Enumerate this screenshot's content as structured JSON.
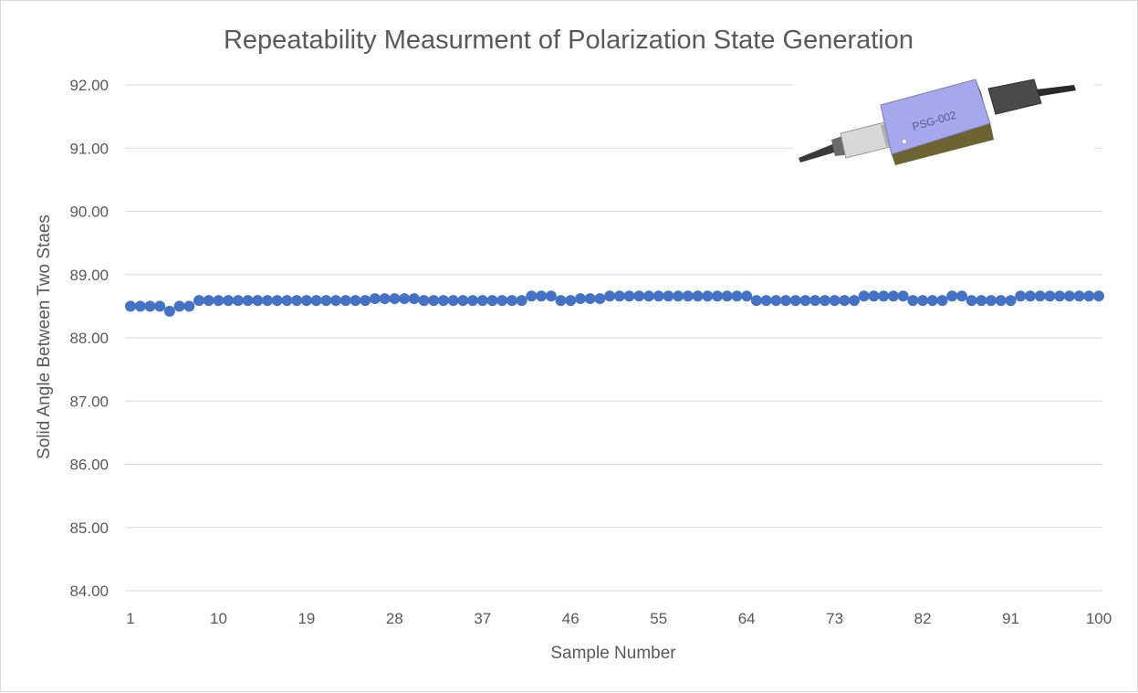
{
  "chart_data": {
    "type": "scatter",
    "title": "Repeatability Measurment of Polarization State Generation",
    "xlabel": "Sample Number",
    "ylabel": "Solid Angle Between Two Staes",
    "xlim": [
      1,
      100
    ],
    "ylim": [
      84.0,
      92.0
    ],
    "y_ticks": [
      "84.00",
      "85.00",
      "86.00",
      "87.00",
      "88.00",
      "89.00",
      "90.00",
      "91.00",
      "92.00"
    ],
    "x_ticks": [
      "1",
      "10",
      "19",
      "28",
      "37",
      "46",
      "55",
      "64",
      "73",
      "82",
      "91",
      "100"
    ],
    "grid": "horizontal",
    "legend": "none",
    "marker_color": "#4472C4",
    "x": [
      1,
      2,
      3,
      4,
      5,
      6,
      7,
      8,
      9,
      10,
      11,
      12,
      13,
      14,
      15,
      16,
      17,
      18,
      19,
      20,
      21,
      22,
      23,
      24,
      25,
      26,
      27,
      28,
      29,
      30,
      31,
      32,
      33,
      34,
      35,
      36,
      37,
      38,
      39,
      40,
      41,
      42,
      43,
      44,
      45,
      46,
      47,
      48,
      49,
      50,
      51,
      52,
      53,
      54,
      55,
      56,
      57,
      58,
      59,
      60,
      61,
      62,
      63,
      64,
      65,
      66,
      67,
      68,
      69,
      70,
      71,
      72,
      73,
      74,
      75,
      76,
      77,
      78,
      79,
      80,
      81,
      82,
      83,
      84,
      85,
      86,
      87,
      88,
      89,
      90,
      91,
      92,
      93,
      94,
      95,
      96,
      97,
      98,
      99,
      100
    ],
    "y": [
      88.5,
      88.5,
      88.5,
      88.5,
      88.42,
      88.5,
      88.5,
      88.59,
      88.59,
      88.59,
      88.59,
      88.59,
      88.59,
      88.59,
      88.59,
      88.59,
      88.59,
      88.59,
      88.59,
      88.59,
      88.59,
      88.59,
      88.59,
      88.59,
      88.59,
      88.62,
      88.62,
      88.62,
      88.62,
      88.62,
      88.59,
      88.59,
      88.59,
      88.59,
      88.59,
      88.59,
      88.59,
      88.59,
      88.59,
      88.59,
      88.59,
      88.66,
      88.66,
      88.66,
      88.59,
      88.59,
      88.62,
      88.62,
      88.62,
      88.66,
      88.66,
      88.66,
      88.66,
      88.66,
      88.66,
      88.66,
      88.66,
      88.66,
      88.66,
      88.66,
      88.66,
      88.66,
      88.66,
      88.66,
      88.59,
      88.59,
      88.59,
      88.59,
      88.59,
      88.59,
      88.59,
      88.59,
      88.59,
      88.59,
      88.59,
      88.66,
      88.66,
      88.66,
      88.66,
      88.66,
      88.59,
      88.59,
      88.59,
      88.59,
      88.66,
      88.66,
      88.59,
      88.59,
      88.59,
      88.59,
      88.59,
      88.66,
      88.66,
      88.66,
      88.66,
      88.66,
      88.66,
      88.66,
      88.66,
      88.66
    ]
  },
  "inset": {
    "device_label": "PSG-002",
    "body_color": "#a7a7ec",
    "icon": "fiber-polarization-device-icon"
  }
}
